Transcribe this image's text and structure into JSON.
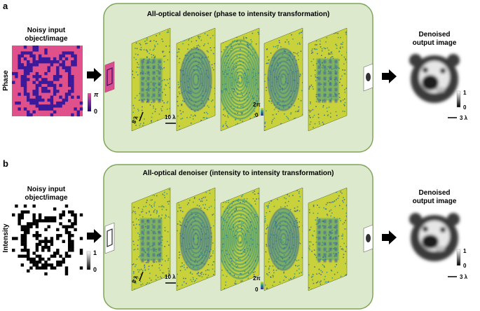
{
  "panels": [
    {
      "label": "a",
      "input_title_line1": "Noisy input",
      "input_title_line2": "object/image",
      "modality": "Phase",
      "input_scale_max": "π",
      "input_scale_min": "0",
      "box_title": "All-optical denoiser (phase to intensity transformation)",
      "scale_bar_8": "8 λ",
      "scale_bar_10": "10 λ",
      "layer_scale_max": "2π",
      "layer_scale_min": "0",
      "output_title_line1": "Denoised",
      "output_title_line2": "output image",
      "output_scale_max": "1",
      "output_scale_min": "0",
      "output_scale_bar": "3 λ"
    },
    {
      "label": "b",
      "input_title_line1": "Noisy input",
      "input_title_line2": "object/image",
      "modality": "Intensity",
      "input_scale_max": "1",
      "input_scale_min": "0",
      "box_title": "All-optical denoiser (intensity to intensity transformation)",
      "scale_bar_8": "8 λ",
      "scale_bar_10": "10 λ",
      "layer_scale_max": "2π",
      "layer_scale_min": "0",
      "output_title_line1": "Denoised",
      "output_title_line2": "output image",
      "output_scale_max": "1",
      "output_scale_min": "0",
      "output_scale_bar": "3 λ"
    }
  ],
  "colors": {
    "box_fill": "#dde9cc",
    "box_stroke": "#7ea65a",
    "phase_bg": "#e0508a",
    "phase_ink": "#3a1a9a",
    "layer_base": "#c9d23a",
    "layer_teal": "#2a8f8c",
    "layer_blue": "#3a55a8"
  }
}
